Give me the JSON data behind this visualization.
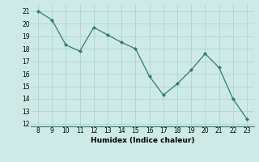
{
  "x": [
    8,
    9,
    10,
    11,
    12,
    13,
    14,
    15,
    16,
    17,
    18,
    19,
    20,
    21,
    22,
    23
  ],
  "y": [
    21,
    20.3,
    18.3,
    17.8,
    19.7,
    19.1,
    18.5,
    18.0,
    15.8,
    14.3,
    15.2,
    16.3,
    17.6,
    16.5,
    14.0,
    12.4
  ],
  "line_color": "#2d7d6e",
  "marker": "D",
  "marker_size": 2.0,
  "xlabel": "Humidex (Indice chaleur)",
  "xlim": [
    7.5,
    23.5
  ],
  "ylim": [
    11.8,
    21.5
  ],
  "xticks": [
    8,
    9,
    10,
    11,
    12,
    13,
    14,
    15,
    16,
    17,
    18,
    19,
    20,
    21,
    22,
    23
  ],
  "yticks": [
    12,
    13,
    14,
    15,
    16,
    17,
    18,
    19,
    20,
    21
  ],
  "bg_color": "#ceeae6",
  "grid_color": "#afd4d0",
  "label_fontsize": 6.5,
  "tick_fontsize": 5.5,
  "linewidth": 0.9
}
